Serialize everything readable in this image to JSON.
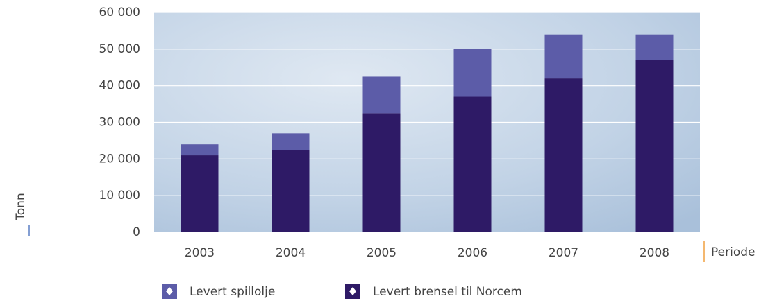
{
  "chart_data": {
    "type": "stacked-bar",
    "categories": [
      "2003",
      "2004",
      "2005",
      "2006",
      "2007",
      "2008"
    ],
    "series": [
      {
        "name": "Levert spillolje",
        "color": "#5c5ca8",
        "values": [
          3000,
          4500,
          10000,
          13000,
          12000,
          7000
        ]
      },
      {
        "name": "Levert brensel til Norcem",
        "color": "#2e1a66",
        "values": [
          21000,
          22500,
          32500,
          37000,
          42000,
          47000
        ]
      }
    ],
    "ylabel": "Tonn",
    "xlabel": "Periode",
    "ylim": [
      0,
      60000
    ],
    "yticks": [
      0,
      {
        "value": 10000,
        "label": "10 000"
      },
      {
        "value": 20000,
        "label": "20 000"
      },
      {
        "value": 30000,
        "label": "30 000"
      },
      {
        "value": 40000,
        "label": "40 000"
      },
      {
        "value": 50000,
        "label": "50 000"
      },
      {
        "value": 60000,
        "label": "60 000"
      }
    ],
    "grid": true
  }
}
